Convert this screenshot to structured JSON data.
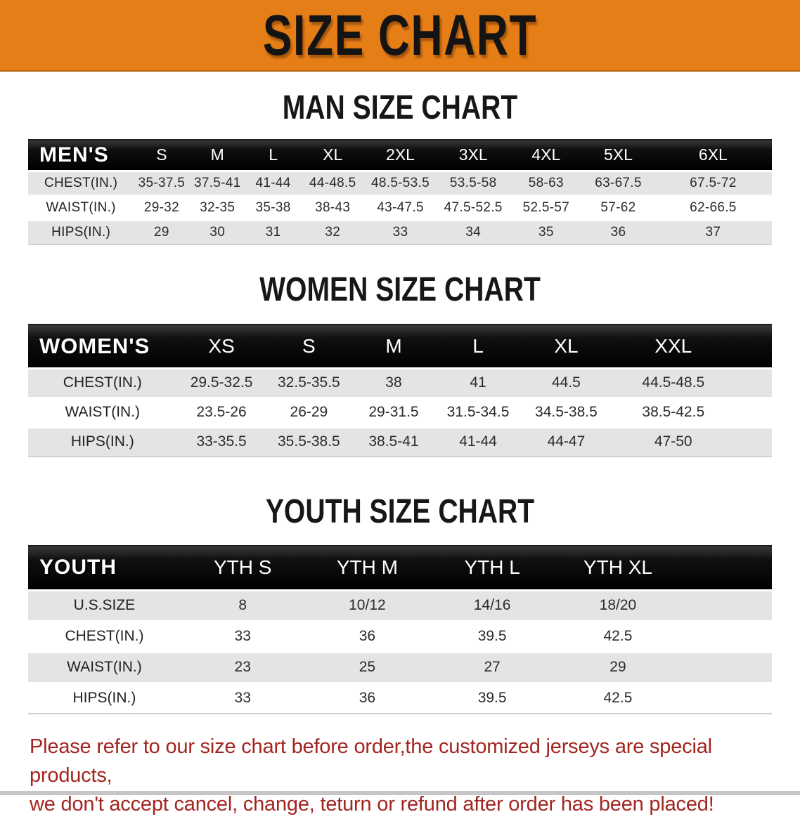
{
  "colors": {
    "banner_bg": "#e67e17",
    "header_bar_bg": "#101010",
    "row_alt_bg": "#e4e4e4",
    "note_text": "#a32520"
  },
  "banner": {
    "title": "SIZE CHART"
  },
  "sections": [
    {
      "heading": "MAN SIZE CHART",
      "table": {
        "header_label": "MEN'S",
        "columns": [
          "S",
          "M",
          "L",
          "XL",
          "2XL",
          "3XL",
          "4XL",
          "5XL",
          "6XL"
        ],
        "rows": [
          {
            "label": "CHEST(IN.)",
            "values": [
              "35-37.5",
              "37.5-41",
              "41-44",
              "44-48.5",
              "48.5-53.5",
              "53.5-58",
              "58-63",
              "63-67.5",
              "67.5-72"
            ]
          },
          {
            "label": "WAIST(IN.)",
            "values": [
              "29-32",
              "32-35",
              "35-38",
              "38-43",
              "43-47.5",
              "47.5-52.5",
              "52.5-57",
              "57-62",
              "62-66.5"
            ]
          },
          {
            "label": "HIPS(IN.)",
            "values": [
              "29",
              "30",
              "31",
              "32",
              "33",
              "34",
              "35",
              "36",
              "37"
            ]
          }
        ]
      }
    },
    {
      "heading": "WOMEN SIZE CHART",
      "table": {
        "header_label": "WOMEN'S",
        "columns": [
          "XS",
          "S",
          "M",
          "L",
          "XL",
          "XXL"
        ],
        "rows": [
          {
            "label": "CHEST(IN.)",
            "values": [
              "29.5-32.5",
              "32.5-35.5",
              "38",
              "41",
              "44.5",
              "44.5-48.5"
            ]
          },
          {
            "label": "WAIST(IN.)",
            "values": [
              "23.5-26",
              "26-29",
              "29-31.5",
              "31.5-34.5",
              "34.5-38.5",
              "38.5-42.5"
            ]
          },
          {
            "label": "HIPS(IN.)",
            "values": [
              "33-35.5",
              "35.5-38.5",
              "38.5-41",
              "41-44",
              "44-47",
              "47-50"
            ]
          }
        ]
      }
    },
    {
      "heading": "YOUTH SIZE CHART",
      "table": {
        "header_label": "YOUTH",
        "columns": [
          "YTH S",
          "YTH M",
          "YTH L",
          "YTH XL"
        ],
        "rows": [
          {
            "label": "U.S.SIZE",
            "values": [
              "8",
              "10/12",
              "14/16",
              "18/20"
            ]
          },
          {
            "label": "CHEST(IN.)",
            "values": [
              "33",
              "36",
              "39.5",
              "42.5"
            ]
          },
          {
            "label": "WAIST(IN.)",
            "values": [
              "23",
              "25",
              "27",
              "29"
            ]
          },
          {
            "label": "HIPS(IN.)",
            "values": [
              "33",
              "36",
              "39.5",
              "42.5"
            ]
          }
        ]
      }
    }
  ],
  "footer_note": {
    "line1": "Please refer to our size chart before order,the customized jerseys are special products,",
    "line2": "we don't accept cancel, change, teturn or refund after order has been placed!"
  }
}
